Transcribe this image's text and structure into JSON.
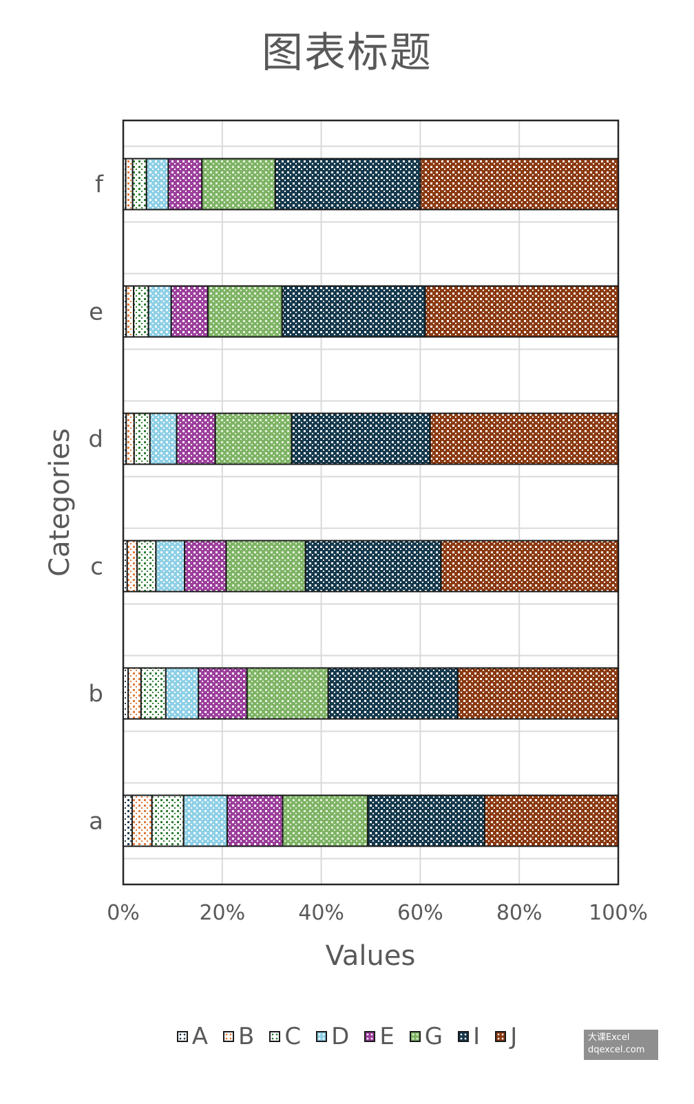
{
  "title": "图表标题",
  "watermark": {
    "line1": "大课Excel",
    "line2": "dqexcel.com"
  },
  "chart_data": {
    "type": "bar",
    "orientation": "horizontal",
    "stacked": "percent",
    "title": "图表标题",
    "xlabel": "Values",
    "ylabel": "Categories",
    "xlim": [
      0,
      100
    ],
    "x_ticks": [
      "0%",
      "20%",
      "40%",
      "60%",
      "80%",
      "100%"
    ],
    "grid": true,
    "legend_position": "bottom",
    "categories": [
      "a",
      "b",
      "c",
      "d",
      "e",
      "f"
    ],
    "series": [
      {
        "name": "A",
        "color": "#ffffff",
        "dot": "#1f3b4d",
        "values": [
          1.8,
          1.0,
          0.8,
          0.6,
          0.6,
          0.5
        ]
      },
      {
        "name": "B",
        "color": "#ffffff",
        "dot": "#e07b39",
        "values": [
          4.0,
          2.6,
          2.0,
          1.6,
          1.5,
          1.4
        ]
      },
      {
        "name": "C",
        "color": "#ffffff",
        "dot": "#2e7d32",
        "values": [
          6.4,
          5.0,
          3.8,
          3.2,
          3.0,
          2.8
        ]
      },
      {
        "name": "D",
        "color": "#8fd0e6",
        "dot": "#ffffff",
        "values": [
          8.8,
          6.6,
          5.8,
          5.4,
          4.6,
          4.4
        ]
      },
      {
        "name": "E",
        "color": "#9c3f9c",
        "dot": "#ffffff",
        "values": [
          11.2,
          9.8,
          8.4,
          7.8,
          7.4,
          6.8
        ]
      },
      {
        "name": "G",
        "color": "#7fb466",
        "dot": "#e4f1dc",
        "values": [
          17.2,
          16.4,
          16.0,
          15.4,
          15.0,
          14.8
        ]
      },
      {
        "name": "I",
        "color": "#16394d",
        "dot": "#ffffff",
        "values": [
          23.6,
          26.2,
          27.4,
          28.0,
          28.9,
          29.3
        ]
      },
      {
        "name": "J",
        "color": "#8b3a12",
        "dot": "#ffffff",
        "values": [
          27.0,
          32.4,
          35.8,
          38.0,
          39.0,
          40.0
        ]
      }
    ]
  }
}
